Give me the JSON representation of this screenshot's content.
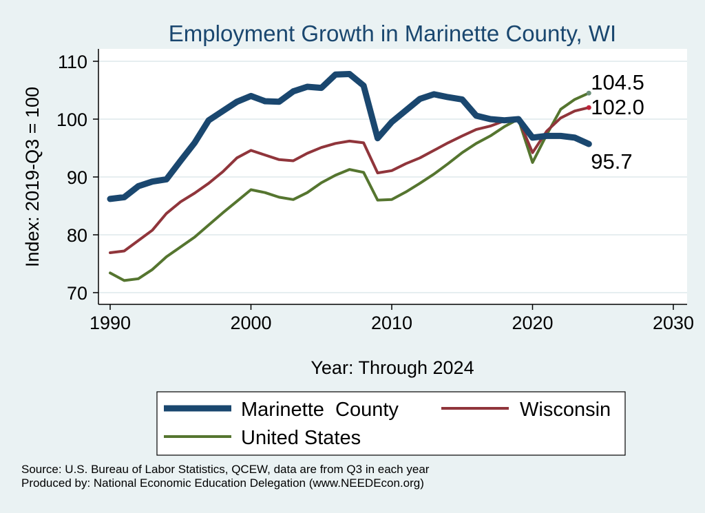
{
  "chart_data": {
    "type": "line",
    "title": "Employment Growth in Marinette County, WI",
    "xlabel": "Year: Through 2024",
    "ylabel": "Index: 2019-Q3 = 100",
    "xlim": [
      1990,
      2030
    ],
    "ylim": [
      70,
      110
    ],
    "x_ticks": [
      1990,
      2000,
      2010,
      2020,
      2030
    ],
    "y_ticks": [
      70,
      80,
      90,
      100,
      110
    ],
    "grid": true,
    "legend_position": "bottom",
    "x": [
      1990,
      1991,
      1992,
      1993,
      1994,
      1995,
      1996,
      1997,
      1998,
      1999,
      2000,
      2001,
      2002,
      2003,
      2004,
      2005,
      2006,
      2007,
      2008,
      2009,
      2010,
      2011,
      2012,
      2013,
      2014,
      2015,
      2016,
      2017,
      2018,
      2019,
      2020,
      2021,
      2022,
      2023,
      2024
    ],
    "series": [
      {
        "name": "Marinette  County",
        "color": "#1a476f",
        "end_label": "95.7",
        "values": [
          86.2,
          86.5,
          88.4,
          89.2,
          89.6,
          92.8,
          95.9,
          99.8,
          101.4,
          103.0,
          104.0,
          103.1,
          103.0,
          104.8,
          105.6,
          105.4,
          107.7,
          107.8,
          105.8,
          96.7,
          99.5,
          101.5,
          103.5,
          104.3,
          103.8,
          103.4,
          100.6,
          100.0,
          99.8,
          100.0,
          96.8,
          97.1,
          97.1,
          96.8,
          95.7
        ]
      },
      {
        "name": "Wisconsin",
        "color": "#90353b",
        "end_label": "102.0",
        "values": [
          76.9,
          77.2,
          79.0,
          80.8,
          83.7,
          85.7,
          87.2,
          88.9,
          90.9,
          93.3,
          94.6,
          93.8,
          93.0,
          92.8,
          94.1,
          95.1,
          95.8,
          96.2,
          95.9,
          90.7,
          91.1,
          92.3,
          93.3,
          94.6,
          95.9,
          97.1,
          98.2,
          98.8,
          99.7,
          100.0,
          94.2,
          97.9,
          100.2,
          101.4,
          102.0
        ]
      },
      {
        "name": "United States",
        "color": "#55752f",
        "end_label": "104.5",
        "values": [
          73.4,
          72.1,
          72.4,
          74.0,
          76.2,
          77.9,
          79.6,
          81.7,
          83.8,
          85.8,
          87.8,
          87.3,
          86.5,
          86.1,
          87.3,
          89.0,
          90.3,
          91.3,
          90.8,
          86.0,
          86.1,
          87.4,
          88.9,
          90.5,
          92.3,
          94.2,
          95.8,
          97.1,
          98.7,
          100.0,
          92.5,
          97.3,
          101.7,
          103.4,
          104.5
        ]
      }
    ]
  },
  "footnotes": {
    "source": "Source: U.S. Bureau of Labor Statistics, QCEW, data are from Q3 in each year",
    "produced_by": "Produced by: National Economic Education Delegation (www.NEEDEcon.org)"
  }
}
